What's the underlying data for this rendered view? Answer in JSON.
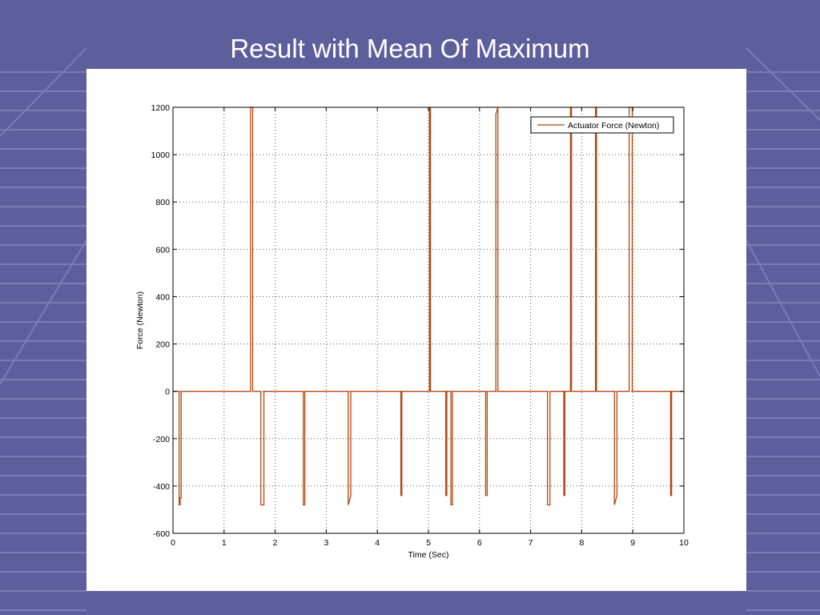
{
  "slide": {
    "title": "Result with Mean Of Maximum"
  },
  "theme": {
    "background": "#5d5f9c",
    "grid_lines": "#7a7cb6",
    "series_color": "#b5470f"
  },
  "chart_data": {
    "type": "line",
    "title": "",
    "xlabel": "Time (Sec)",
    "ylabel": "Force (Newton)",
    "xlim": [
      0,
      10
    ],
    "ylim": [
      -600,
      1200
    ],
    "xticks": [
      0,
      1,
      2,
      3,
      4,
      5,
      6,
      7,
      8,
      9,
      10
    ],
    "yticks": [
      -600,
      -400,
      -200,
      0,
      200,
      400,
      600,
      800,
      1000,
      1200
    ],
    "grid": true,
    "legend_position": "top-right",
    "series": [
      {
        "name": "Actuator Force (Newton)",
        "color": "#b5470f",
        "x": [
          0,
          0.12,
          0.12,
          0.14,
          0.14,
          0.16,
          0.16,
          1.52,
          1.52,
          1.56,
          1.56,
          1.72,
          1.72,
          1.78,
          1.78,
          2.55,
          2.55,
          2.58,
          2.58,
          3.43,
          3.43,
          3.48,
          3.48,
          4.46,
          4.46,
          4.48,
          4.48,
          5.02,
          5.02,
          5.04,
          5.04,
          5.34,
          5.34,
          5.36,
          5.36,
          5.44,
          5.44,
          5.47,
          5.47,
          6.12,
          6.12,
          6.15,
          6.15,
          6.32,
          6.32,
          6.36,
          6.36,
          7.33,
          7.33,
          7.38,
          7.38,
          7.65,
          7.65,
          7.67,
          7.67,
          7.78,
          7.78,
          7.8,
          7.8,
          8.27,
          8.27,
          8.29,
          8.29,
          8.64,
          8.64,
          8.69,
          8.69,
          8.93,
          8.93,
          8.99,
          8.99,
          9.74,
          9.74,
          9.76,
          9.76,
          10
        ],
        "y": [
          0,
          0,
          -480,
          -480,
          -450,
          -450,
          0,
          0,
          1200,
          1200,
          0,
          0,
          -480,
          -480,
          0,
          0,
          -480,
          -480,
          0,
          0,
          -480,
          -440,
          0,
          0,
          -440,
          -440,
          0,
          0,
          1200,
          1200,
          0,
          0,
          -440,
          -440,
          0,
          0,
          -480,
          -480,
          0,
          0,
          -440,
          -440,
          0,
          0,
          1170,
          1200,
          0,
          0,
          -480,
          -480,
          0,
          0,
          -440,
          -440,
          0,
          0,
          1200,
          1200,
          0,
          0,
          1200,
          1200,
          0,
          0,
          -480,
          -440,
          0,
          0,
          1200,
          1200,
          0,
          0,
          -440,
          -440,
          0,
          0
        ]
      }
    ]
  }
}
